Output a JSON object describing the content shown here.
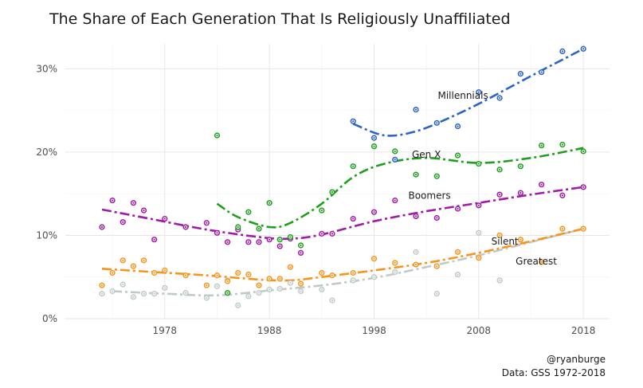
{
  "chart_data": {
    "type": "scatter",
    "title": "The Share of Each Generation That Is Religiously Unaffiliated",
    "xlabel": "",
    "ylabel": "",
    "xlim": [
      1968.5,
      2020.5
    ],
    "ylim": [
      0,
      0.33
    ],
    "x_ticks": [
      1978,
      1988,
      1998,
      2008,
      2018
    ],
    "x_tick_labels": [
      "1978",
      "1988",
      "1998",
      "2008",
      "2018"
    ],
    "y_ticks": [
      0,
      0.1,
      0.2,
      0.3
    ],
    "y_tick_labels": [
      "0%",
      "10%",
      "20%",
      "30%"
    ],
    "grid": true,
    "legend": "direct labels",
    "caption": [
      "@ryanburge",
      "Data: GSS 1972-2018"
    ],
    "series": [
      {
        "name": "Greatest",
        "color": "#c0c9c9",
        "points": [
          [
            1972,
            0.03
          ],
          [
            1973,
            0.033
          ],
          [
            1974,
            0.041
          ],
          [
            1975,
            0.026
          ],
          [
            1976,
            0.03
          ],
          [
            1977,
            0.03
          ],
          [
            1978,
            0.037
          ],
          [
            1980,
            0.031
          ],
          [
            1982,
            0.025
          ],
          [
            1983,
            0.039
          ],
          [
            1984,
            0.046
          ],
          [
            1985,
            0.016
          ],
          [
            1986,
            0.027
          ],
          [
            1987,
            0.031
          ],
          [
            1988,
            0.035
          ],
          [
            1989,
            0.036
          ],
          [
            1990,
            0.043
          ],
          [
            1991,
            0.033
          ],
          [
            1993,
            0.035
          ],
          [
            1994,
            0.022
          ],
          [
            1996,
            0.046
          ],
          [
            1998,
            0.05
          ],
          [
            2000,
            0.056
          ],
          [
            2002,
            0.08
          ],
          [
            2004,
            0.03
          ],
          [
            2006,
            0.053
          ],
          [
            2008,
            0.103
          ],
          [
            2010,
            0.046
          ]
        ],
        "trend": [
          [
            1973,
            0.033
          ],
          [
            1978,
            0.03
          ],
          [
            1983,
            0.028
          ],
          [
            1988,
            0.034
          ],
          [
            1993,
            0.04
          ],
          [
            1998,
            0.049
          ],
          [
            2003,
            0.062
          ],
          [
            2008,
            0.076
          ],
          [
            2013,
            0.092
          ],
          [
            2018,
            0.108
          ]
        ]
      },
      {
        "name": "Silent",
        "color": "#f7941d",
        "points": [
          [
            1972,
            0.04
          ],
          [
            1973,
            0.055
          ],
          [
            1974,
            0.07
          ],
          [
            1975,
            0.063
          ],
          [
            1976,
            0.07
          ],
          [
            1977,
            0.055
          ],
          [
            1978,
            0.058
          ],
          [
            1980,
            0.052
          ],
          [
            1982,
            0.04
          ],
          [
            1983,
            0.052
          ],
          [
            1984,
            0.045
          ],
          [
            1985,
            0.055
          ],
          [
            1986,
            0.053
          ],
          [
            1987,
            0.04
          ],
          [
            1988,
            0.048
          ],
          [
            1989,
            0.048
          ],
          [
            1990,
            0.062
          ],
          [
            1991,
            0.042
          ],
          [
            1993,
            0.055
          ],
          [
            1994,
            0.052
          ],
          [
            1996,
            0.055
          ],
          [
            1998,
            0.072
          ],
          [
            2000,
            0.067
          ],
          [
            2002,
            0.065
          ],
          [
            2004,
            0.063
          ],
          [
            2006,
            0.08
          ],
          [
            2008,
            0.073
          ],
          [
            2010,
            0.1
          ],
          [
            2012,
            0.095
          ],
          [
            2014,
            0.068
          ],
          [
            2016,
            0.108
          ],
          [
            2018,
            0.108
          ]
        ],
        "trend": [
          [
            1972,
            0.06
          ],
          [
            1977,
            0.056
          ],
          [
            1982,
            0.052
          ],
          [
            1987,
            0.047
          ],
          [
            1990,
            0.046
          ],
          [
            1993,
            0.05
          ],
          [
            1998,
            0.058
          ],
          [
            2003,
            0.067
          ],
          [
            2008,
            0.079
          ],
          [
            2013,
            0.093
          ],
          [
            2018,
            0.108
          ]
        ]
      },
      {
        "name": "Boomers",
        "color": "#a01ca8",
        "points": [
          [
            1972,
            0.11
          ],
          [
            1973,
            0.142
          ],
          [
            1974,
            0.116
          ],
          [
            1975,
            0.139
          ],
          [
            1976,
            0.13
          ],
          [
            1977,
            0.095
          ],
          [
            1978,
            0.12
          ],
          [
            1980,
            0.11
          ],
          [
            1982,
            0.115
          ],
          [
            1983,
            0.103
          ],
          [
            1984,
            0.092
          ],
          [
            1985,
            0.107
          ],
          [
            1986,
            0.092
          ],
          [
            1987,
            0.092
          ],
          [
            1988,
            0.095
          ],
          [
            1989,
            0.087
          ],
          [
            1990,
            0.096
          ],
          [
            1991,
            0.079
          ],
          [
            1993,
            0.102
          ],
          [
            1994,
            0.102
          ],
          [
            1996,
            0.12
          ],
          [
            1998,
            0.128
          ],
          [
            2000,
            0.142
          ],
          [
            2002,
            0.123
          ],
          [
            2004,
            0.121
          ],
          [
            2006,
            0.132
          ],
          [
            2008,
            0.136
          ],
          [
            2010,
            0.149
          ],
          [
            2012,
            0.151
          ],
          [
            2014,
            0.161
          ],
          [
            2016,
            0.148
          ],
          [
            2018,
            0.158
          ]
        ],
        "trend": [
          [
            1972,
            0.131
          ],
          [
            1977,
            0.119
          ],
          [
            1982,
            0.107
          ],
          [
            1987,
            0.098
          ],
          [
            1990,
            0.096
          ],
          [
            1993,
            0.101
          ],
          [
            1998,
            0.117
          ],
          [
            2003,
            0.129
          ],
          [
            2008,
            0.139
          ],
          [
            2013,
            0.149
          ],
          [
            2018,
            0.158
          ]
        ]
      },
      {
        "name": "Gen X",
        "color": "#1ea01e",
        "points": [
          [
            1983,
            0.22
          ],
          [
            1984,
            0.031
          ],
          [
            1985,
            0.11
          ],
          [
            1986,
            0.128
          ],
          [
            1987,
            0.108
          ],
          [
            1988,
            0.139
          ],
          [
            1989,
            0.095
          ],
          [
            1990,
            0.098
          ],
          [
            1991,
            0.088
          ],
          [
            1993,
            0.13
          ],
          [
            1994,
            0.152
          ],
          [
            1996,
            0.183
          ],
          [
            1998,
            0.207
          ],
          [
            2000,
            0.201
          ],
          [
            2002,
            0.173
          ],
          [
            2004,
            0.171
          ],
          [
            2006,
            0.196
          ],
          [
            2008,
            0.186
          ],
          [
            2010,
            0.179
          ],
          [
            2012,
            0.183
          ],
          [
            2014,
            0.208
          ],
          [
            2016,
            0.209
          ],
          [
            2018,
            0.201
          ]
        ],
        "trend": [
          [
            1983,
            0.138
          ],
          [
            1985,
            0.122
          ],
          [
            1988,
            0.11
          ],
          [
            1990,
            0.115
          ],
          [
            1993,
            0.138
          ],
          [
            1996,
            0.17
          ],
          [
            1999,
            0.186
          ],
          [
            2003,
            0.193
          ],
          [
            2008,
            0.187
          ],
          [
            2013,
            0.193
          ],
          [
            2018,
            0.205
          ]
        ]
      },
      {
        "name": "Millennials",
        "color": "#2b63c6",
        "points": [
          [
            1996,
            0.237
          ],
          [
            1998,
            0.217
          ],
          [
            2000,
            0.191
          ],
          [
            2002,
            0.251
          ],
          [
            2004,
            0.235
          ],
          [
            2006,
            0.231
          ],
          [
            2008,
            0.272
          ],
          [
            2010,
            0.265
          ],
          [
            2012,
            0.294
          ],
          [
            2014,
            0.296
          ],
          [
            2016,
            0.321
          ],
          [
            2018,
            0.324
          ]
        ],
        "trend": [
          [
            1996,
            0.234
          ],
          [
            1999,
            0.22
          ],
          [
            2002,
            0.225
          ],
          [
            2005,
            0.24
          ],
          [
            2008,
            0.258
          ],
          [
            2011,
            0.278
          ],
          [
            2014,
            0.298
          ],
          [
            2016,
            0.311
          ],
          [
            2018,
            0.324
          ]
        ]
      }
    ],
    "annotations": [
      {
        "text": "Millennials",
        "x": 2006.5,
        "y": 0.264
      },
      {
        "text": "Gen X",
        "x": 2003,
        "y": 0.193
      },
      {
        "text": "Boomers",
        "x": 2003.3,
        "y": 0.144
      },
      {
        "text": "Silent",
        "x": 2010.5,
        "y": 0.089
      },
      {
        "text": "Greatest",
        "x": 2013.5,
        "y": 0.065
      }
    ]
  }
}
